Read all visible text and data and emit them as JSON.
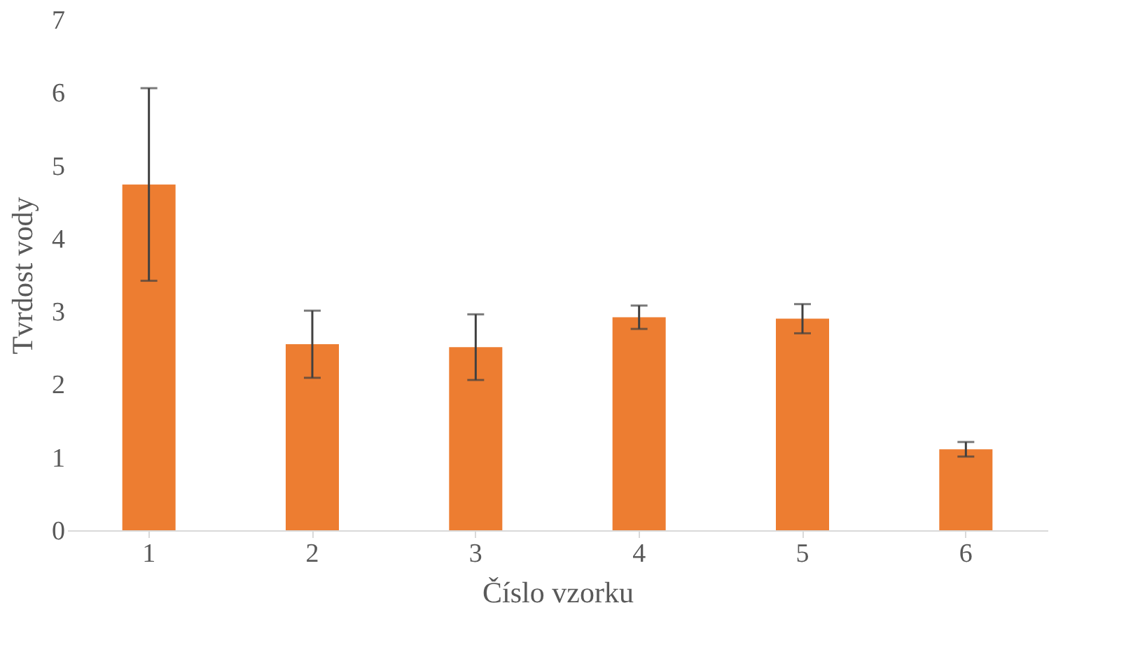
{
  "chart_data": {
    "type": "bar",
    "xlabel": "Číslo vzorku",
    "ylabel": "Tvrdost vody",
    "categories": [
      "1",
      "2",
      "3",
      "4",
      "5",
      "6"
    ],
    "values": [
      4.74,
      2.55,
      2.51,
      2.92,
      2.9,
      1.11
    ],
    "errors": [
      1.32,
      0.46,
      0.45,
      0.16,
      0.2,
      0.1
    ],
    "color": "#ed7d31",
    "ylim": [
      0,
      7
    ],
    "yticks": [
      0,
      1,
      2,
      3,
      4,
      5,
      6,
      7
    ],
    "grid": false
  }
}
